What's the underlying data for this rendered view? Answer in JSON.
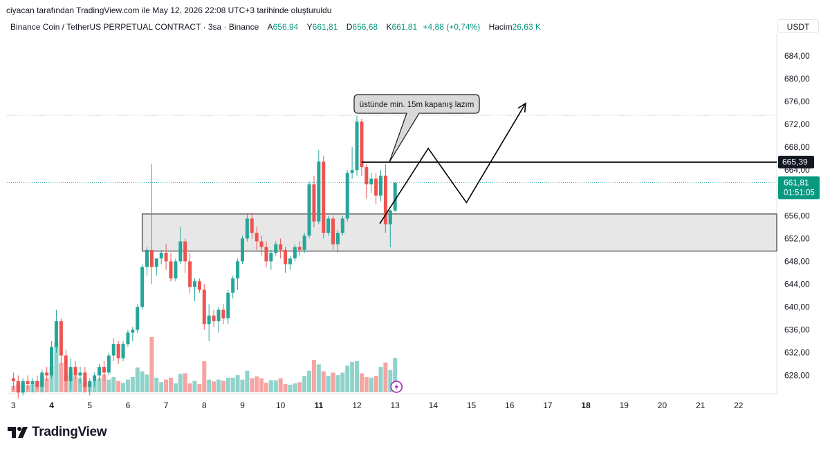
{
  "header": {
    "caption": "ciyacan tarafından TradingView.com ile May 12, 2026 22:08 UTC+3 tarihinde oluşturuldu",
    "symbol": "Binance Coin / TetherUS PERPETUAL CONTRACT · 3sa · Binance",
    "open_label": "A",
    "open": "656,94",
    "high_label": "Y",
    "high": "661,81",
    "low_label": "D",
    "low": "656,68",
    "close_label": "K",
    "close": "661,81",
    "change": "+4,88 (+0,74%)",
    "volume_label": "Hacim",
    "volume": "26,63 K",
    "currency": "USDT"
  },
  "brand": {
    "name": "TradingView"
  },
  "colors": {
    "up": "#26a69a",
    "down": "#ef5350",
    "zone": "#e3e3e3",
    "drawing": "#000000",
    "price_tag": "#089981",
    "dotted": "#26a69a"
  },
  "chart_data": {
    "type": "candlestick",
    "y_ticks": [
      628,
      632,
      636,
      640,
      644,
      648,
      652,
      656,
      660,
      664,
      668,
      672,
      676,
      680,
      684
    ],
    "y_tick_labels": [
      "628,00",
      "632,00",
      "636,00",
      "640,00",
      "644,00",
      "648,00",
      "652,00",
      "656,00",
      "660,00",
      "664,00",
      "668,00",
      "672,00",
      "676,00",
      "680,00",
      "684,00"
    ],
    "x_tick_labels": [
      {
        "day": 3,
        "label": "3",
        "bold": false
      },
      {
        "day": 4,
        "label": "4",
        "bold": true
      },
      {
        "day": 5,
        "label": "5",
        "bold": false
      },
      {
        "day": 6,
        "label": "6",
        "bold": false
      },
      {
        "day": 7,
        "label": "7",
        "bold": false
      },
      {
        "day": 8,
        "label": "8",
        "bold": false
      },
      {
        "day": 9,
        "label": "9",
        "bold": false
      },
      {
        "day": 10,
        "label": "10",
        "bold": false
      },
      {
        "day": 11,
        "label": "11",
        "bold": true
      },
      {
        "day": 12,
        "label": "12",
        "bold": false
      },
      {
        "day": 13,
        "label": "13",
        "bold": false
      },
      {
        "day": 14,
        "label": "14",
        "bold": false
      },
      {
        "day": 15,
        "label": "15",
        "bold": false
      },
      {
        "day": 16,
        "label": "16",
        "bold": false
      },
      {
        "day": 17,
        "label": "17",
        "bold": false
      },
      {
        "day": 18,
        "label": "18",
        "bold": true
      },
      {
        "day": 19,
        "label": "19",
        "bold": false
      },
      {
        "day": 20,
        "label": "20",
        "bold": false
      },
      {
        "day": 21,
        "label": "21",
        "bold": false
      },
      {
        "day": 22,
        "label": "22",
        "bold": false
      }
    ],
    "first_candle_day": 3.0,
    "candle_interval_days": 0.125,
    "candles": [
      [
        627.5,
        628.5,
        625.5,
        627.0
      ],
      [
        627.0,
        628.0,
        624.0,
        625.0
      ],
      [
        625.0,
        627.5,
        624.5,
        627.0
      ],
      [
        627.0,
        628.0,
        625.5,
        626.5
      ],
      [
        626.5,
        627.5,
        625.0,
        627.0
      ],
      [
        627.0,
        628.0,
        625.5,
        626.0
      ],
      [
        626.0,
        629.0,
        625.0,
        628.5
      ],
      [
        628.5,
        629.5,
        627.0,
        628.0
      ],
      [
        628.0,
        634.0,
        627.5,
        633.0
      ],
      [
        633.0,
        639.5,
        632.0,
        637.5
      ],
      [
        637.5,
        638.0,
        630.0,
        631.5
      ],
      [
        631.5,
        632.5,
        625.0,
        627.0
      ],
      [
        627.0,
        631.0,
        625.5,
        629.5
      ],
      [
        629.5,
        630.5,
        627.5,
        628.0
      ],
      [
        628.0,
        629.5,
        626.5,
        628.5
      ],
      [
        628.5,
        629.5,
        625.0,
        626.0
      ],
      [
        626.0,
        627.5,
        624.5,
        627.0
      ],
      [
        627.0,
        628.5,
        626.0,
        628.0
      ],
      [
        628.0,
        630.0,
        627.0,
        629.5
      ],
      [
        629.5,
        630.5,
        627.0,
        628.5
      ],
      [
        628.5,
        632.0,
        628.0,
        631.5
      ],
      [
        631.5,
        634.5,
        630.5,
        633.5
      ],
      [
        633.5,
        634.0,
        630.0,
        631.0
      ],
      [
        631.0,
        634.0,
        630.5,
        633.5
      ],
      [
        633.5,
        636.0,
        633.0,
        635.5
      ],
      [
        635.5,
        636.5,
        634.0,
        636.0
      ],
      [
        636.0,
        640.5,
        635.5,
        640.0
      ],
      [
        640.0,
        647.5,
        639.5,
        647.0
      ],
      [
        647.0,
        650.5,
        645.5,
        650.0
      ],
      [
        650.0,
        665.0,
        644.0,
        647.0
      ],
      [
        647.0,
        648.5,
        645.5,
        648.5
      ],
      [
        648.5,
        650.0,
        647.5,
        649.5
      ],
      [
        649.5,
        651.0,
        646.5,
        648.0
      ],
      [
        648.0,
        649.5,
        644.5,
        645.0
      ],
      [
        645.0,
        648.5,
        644.5,
        648.0
      ],
      [
        648.0,
        654.0,
        647.5,
        651.5
      ],
      [
        651.5,
        652.0,
        646.0,
        648.0
      ],
      [
        648.0,
        649.5,
        642.5,
        643.5
      ],
      [
        643.5,
        645.0,
        641.0,
        644.5
      ],
      [
        644.5,
        645.0,
        642.5,
        643.0
      ],
      [
        643.0,
        644.0,
        636.0,
        637.0
      ],
      [
        637.0,
        640.5,
        634.0,
        638.5
      ],
      [
        638.5,
        639.5,
        636.5,
        637.5
      ],
      [
        637.5,
        640.0,
        635.5,
        639.5
      ],
      [
        639.5,
        640.5,
        637.0,
        638.0
      ],
      [
        638.0,
        643.0,
        637.0,
        642.5
      ],
      [
        642.5,
        645.5,
        641.5,
        645.0
      ],
      [
        645.0,
        648.5,
        643.0,
        648.0
      ],
      [
        648.0,
        652.5,
        647.5,
        652.0
      ],
      [
        652.0,
        656.5,
        651.5,
        655.5
      ],
      [
        655.5,
        656.5,
        652.0,
        653.0
      ],
      [
        653.0,
        654.0,
        650.0,
        651.5
      ],
      [
        651.5,
        652.5,
        649.0,
        650.5
      ],
      [
        650.5,
        651.5,
        647.0,
        648.0
      ],
      [
        648.0,
        650.0,
        646.5,
        649.5
      ],
      [
        649.5,
        651.5,
        649.0,
        651.0
      ],
      [
        651.0,
        652.0,
        648.5,
        650.0
      ],
      [
        650.0,
        650.5,
        646.0,
        647.5
      ],
      [
        647.5,
        649.0,
        646.5,
        648.5
      ],
      [
        648.5,
        651.0,
        648.0,
        650.5
      ],
      [
        650.5,
        651.5,
        649.0,
        650.0
      ],
      [
        650.0,
        653.0,
        649.5,
        652.5
      ],
      [
        652.5,
        662.0,
        652.0,
        661.5
      ],
      [
        661.5,
        663.0,
        654.0,
        655.0
      ],
      [
        655.0,
        667.5,
        654.5,
        665.5
      ],
      [
        665.5,
        666.5,
        652.0,
        653.0
      ],
      [
        653.0,
        656.0,
        652.5,
        655.5
      ],
      [
        655.5,
        656.0,
        650.0,
        651.0
      ],
      [
        651.0,
        653.5,
        649.5,
        653.0
      ],
      [
        653.0,
        656.0,
        652.5,
        655.5
      ],
      [
        655.5,
        664.0,
        655.0,
        663.5
      ],
      [
        663.5,
        668.0,
        662.5,
        664.0
      ],
      [
        664.0,
        673.5,
        663.0,
        672.5
      ],
      [
        672.5,
        673.0,
        663.0,
        664.5
      ],
      [
        664.5,
        665.0,
        659.0,
        661.5
      ],
      [
        661.5,
        663.5,
        660.0,
        662.5
      ],
      [
        662.5,
        663.5,
        658.0,
        659.5
      ],
      [
        659.5,
        664.0,
        658.5,
        663.0
      ],
      [
        663.0,
        665.0,
        653.0,
        654.5
      ],
      [
        654.5,
        657.0,
        650.5,
        656.9
      ],
      [
        656.9,
        661.8,
        656.7,
        661.8
      ]
    ],
    "volumes": [
      1.0,
      1.2,
      1.5,
      1.1,
      1.3,
      1.8,
      2.6,
      2.2,
      4.1,
      7.9,
      4.6,
      2.6,
      3.2,
      2.5,
      2.2,
      1.6,
      1.5,
      1.9,
      2.2,
      2.8,
      2.0,
      2.4,
      1.8,
      1.5,
      2.0,
      2.4,
      3.9,
      3.3,
      2.8,
      8.7,
      2.3,
      1.6,
      2.0,
      2.3,
      1.4,
      2.9,
      3.0,
      1.4,
      1.8,
      1.3,
      4.9,
      2.0,
      1.7,
      2.0,
      1.8,
      2.3,
      2.3,
      2.7,
      2.0,
      3.4,
      2.2,
      2.5,
      2.2,
      1.5,
      1.9,
      1.9,
      2.2,
      1.3,
      1.2,
      1.4,
      1.6,
      2.6,
      3.4,
      5.1,
      4.4,
      3.3,
      2.6,
      3.1,
      2.7,
      3.1,
      4.2,
      4.8,
      4.9,
      3.0,
      2.4,
      2.3,
      2.6,
      4.0,
      4.7,
      3.5,
      5.4
    ],
    "zone": {
      "top": 656.3,
      "bottom": 649.8,
      "start_day": 6.375
    },
    "horizontal_level": {
      "price": 665.39,
      "label": "665,39",
      "start_day": 12.125
    },
    "last_price": {
      "price": 661.81,
      "label": "661,81",
      "countdown": "01:51:05"
    },
    "dotted_high": 673.6,
    "projection_path": [
      [
        12.6,
        654.6
      ],
      [
        13.87,
        667.8
      ],
      [
        14.87,
        658.3
      ],
      [
        16.42,
        675.7
      ]
    ],
    "callout": {
      "text": "üstünde min. 15m kapanış lazım",
      "anchor_day": 12.85,
      "anchor_price": 665.4
    },
    "ylim": [
      624.8,
      688.0
    ],
    "xlim": [
      2.83,
      23.0
    ]
  }
}
